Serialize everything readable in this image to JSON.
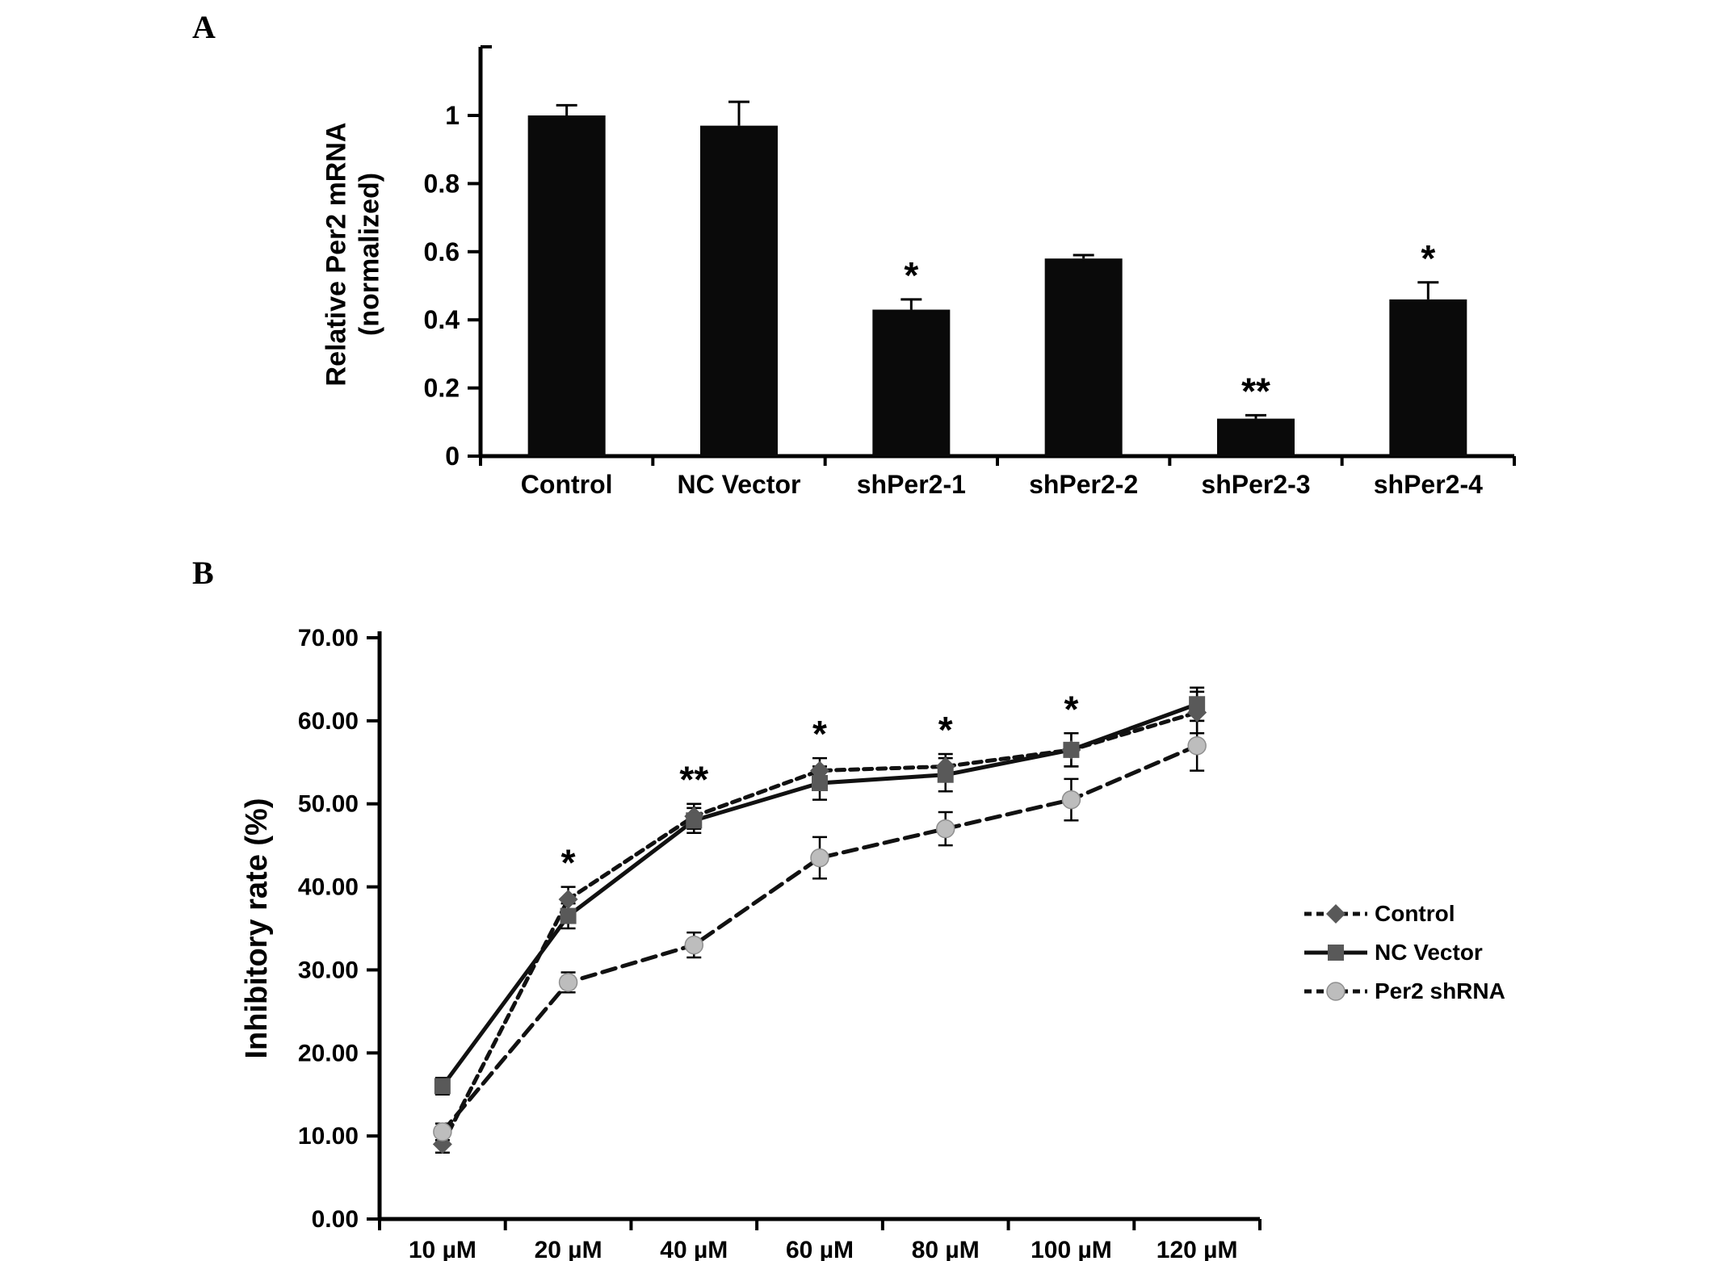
{
  "panels": {
    "a": {
      "label": "A"
    },
    "b": {
      "label": "B"
    }
  },
  "colors": {
    "bar": "#0a0a0a",
    "line": "#111111",
    "control_marker": "#595959",
    "nc_marker": "#595959",
    "per2_marker": "#bdbdbd"
  },
  "chart_data": [
    {
      "type": "bar",
      "title": "",
      "ylabel_lines": [
        "Relative Per2 mRNA",
        "(normalized)"
      ],
      "categories": [
        "Control",
        "NC Vector",
        "shPer2-1",
        "shPer2-2",
        "shPer2-3",
        "shPer2-4"
      ],
      "values": [
        1.0,
        0.97,
        0.43,
        0.58,
        0.11,
        0.46
      ],
      "errors": [
        0.03,
        0.07,
        0.03,
        0.01,
        0.01,
        0.05
      ],
      "annotations": [
        "",
        "",
        "*",
        "",
        "**",
        "*"
      ],
      "ylim": [
        0,
        1.2
      ],
      "yticks": [
        0,
        0.2,
        0.4,
        0.6,
        0.8,
        1
      ],
      "ytick_labels": [
        "0",
        "0.2",
        "0.4",
        "0.6",
        "0.8",
        "1"
      ],
      "grid": false
    },
    {
      "type": "line",
      "title": "",
      "ylabel": "Inhibitory rate (%)",
      "categories": [
        "10 µM",
        "20 µM",
        "40 µM",
        "60 µM",
        "80 µM",
        "100 µM",
        "120 µM"
      ],
      "series": [
        {
          "name": "Control",
          "values": [
            9.0,
            38.5,
            48.5,
            54.0,
            54.5,
            56.5,
            61.0
          ],
          "errors": [
            1.0,
            1.5,
            1.5,
            1.5,
            1.5,
            2.0,
            2.5
          ],
          "marker": "diamond",
          "dash": "10 7",
          "marker_color": "#595959"
        },
        {
          "name": "NC Vector",
          "values": [
            16.0,
            36.5,
            48.0,
            52.5,
            53.5,
            56.5,
            62.0
          ],
          "errors": [
            1.0,
            1.5,
            1.5,
            2.0,
            2.0,
            2.0,
            2.0
          ],
          "marker": "square",
          "dash": "",
          "marker_color": "#595959"
        },
        {
          "name": "Per2 shRNA",
          "values": [
            10.5,
            28.5,
            33.0,
            43.5,
            47.0,
            50.5,
            57.0
          ],
          "errors": [
            1.0,
            1.2,
            1.5,
            2.5,
            2.0,
            2.5,
            3.0
          ],
          "marker": "circle",
          "dash": "17 9",
          "marker_color": "#bdbdbd"
        }
      ],
      "sig_annotations": [
        "",
        "*",
        "**",
        "*",
        "*",
        "*",
        ""
      ],
      "ylim": [
        0,
        70
      ],
      "yticks": [
        0,
        10,
        20,
        30,
        40,
        50,
        60,
        70
      ],
      "ytick_labels": [
        "0.00",
        "10.00",
        "20.00",
        "30.00",
        "40.00",
        "50.00",
        "60.00",
        "70.00"
      ],
      "legend_position": "right",
      "grid": false
    }
  ]
}
